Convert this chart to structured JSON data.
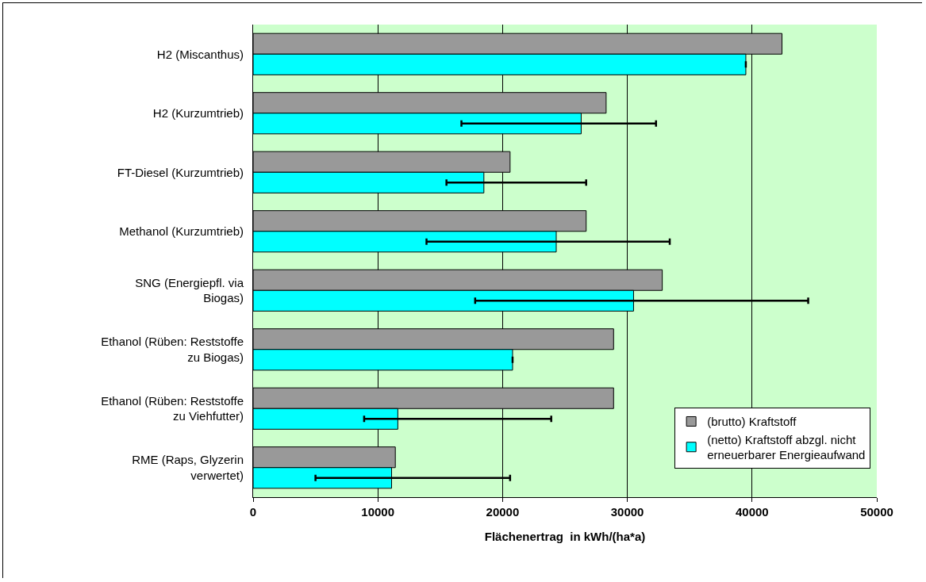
{
  "chart_data": {
    "type": "bar",
    "orientation": "horizontal",
    "xlabel": "Flächenertrag  in kWh/(ha*a)",
    "categories": [
      "H2 (Miscanthus)",
      "H2 (Kurzumtrieb)",
      "FT-Diesel (Kurzumtrieb)",
      "Methanol (Kurzumtrieb)",
      "SNG (Energiepfl. via\nBiogas)",
      "Ethanol (Rüben: Reststoffe\nzu Biogas)",
      "Ethanol (Rüben: Reststoffe\nzu Viehfutter)",
      "RME (Raps, Glyzerin\nverwertet)"
    ],
    "series": [
      {
        "name": "(brutto) Kraftstoff",
        "color": "#999999",
        "values": [
          42400,
          28300,
          20600,
          26700,
          32800,
          28900,
          28900,
          11400
        ]
      },
      {
        "name": "(netto) Kraftstoff abzgl. nicht\nerneuerbarer Energieaufwand",
        "color": "#00ffff",
        "values": [
          39500,
          26300,
          18500,
          24300,
          30500,
          20800,
          11600,
          11100
        ],
        "errors": [
          null,
          [
            16700,
            32300
          ],
          [
            15500,
            26700
          ],
          [
            13900,
            33400
          ],
          [
            17800,
            44500
          ],
          null,
          [
            8900,
            23900
          ],
          [
            5000,
            20600
          ]
        ]
      }
    ],
    "xlim": [
      0,
      50000
    ],
    "xticks": [
      0,
      10000,
      20000,
      30000,
      40000,
      50000
    ],
    "grid": "x",
    "legend": "bottom right"
  }
}
